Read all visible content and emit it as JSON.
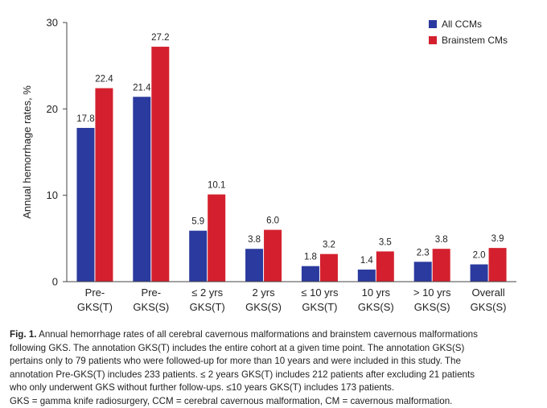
{
  "chart_data": {
    "type": "bar",
    "categories": [
      [
        "Pre-",
        "GKS(T)"
      ],
      [
        "Pre-",
        "GKS(S)"
      ],
      [
        "≤ 2 yrs",
        "GKS(T)"
      ],
      [
        "2 yrs",
        "GKS(S)"
      ],
      [
        "≤ 10 yrs",
        "GKS(T)"
      ],
      [
        "10 yrs",
        "GKS(S)"
      ],
      [
        "> 10 yrs",
        "GKS(S)"
      ],
      [
        "Overall",
        "GKS(S)"
      ]
    ],
    "series": [
      {
        "name": "All CCMs",
        "color": "#2b3a9e",
        "values": [
          17.8,
          21.4,
          5.9,
          3.8,
          1.8,
          1.4,
          2.3,
          2.0
        ],
        "labels": [
          "17.8",
          "21.4",
          "5.9",
          "3.8",
          "1.8",
          "1.4",
          "2.3",
          "2.0"
        ]
      },
      {
        "name": "Brainstem CMs",
        "color": "#d4202e",
        "values": [
          22.4,
          27.2,
          10.1,
          6.0,
          3.2,
          3.5,
          3.8,
          3.9
        ],
        "labels": [
          "22.4",
          "27.2",
          "10.1",
          "6.0",
          "3.2",
          "3.5",
          "3.8",
          "3.9"
        ]
      }
    ],
    "ylabel": "Annual hemorrhage rates, %",
    "ylim": [
      0,
      30
    ],
    "yticks": [
      "0",
      "10",
      "20",
      "30"
    ],
    "grid": false,
    "legend_position": "top-right"
  },
  "caption": {
    "prefix": "Fig. 1.",
    "lines": [
      " Annual hemorrhage rates of all cerebral cavernous malformations and brainstem cavernous malformations",
      "following GKS. The annotation GKS(T) includes the entire cohort at a given time point. The annotation GKS(S)",
      "pertains only to 79 patients who were followed-up for more than 10 years and were included in this study. The",
      "annotation Pre-GKS(T) includes 233 patients. ≤ 2 years GKS(T) includes 212 patients after excluding 21 patients",
      "who only underwent GKS without further follow-ups. ≤10 years GKS(T) includes 173 patients.",
      "GKS = gamma knife radiosurgery, CCM = cerebral cavernous malformation, CM = cavernous malformation."
    ]
  }
}
